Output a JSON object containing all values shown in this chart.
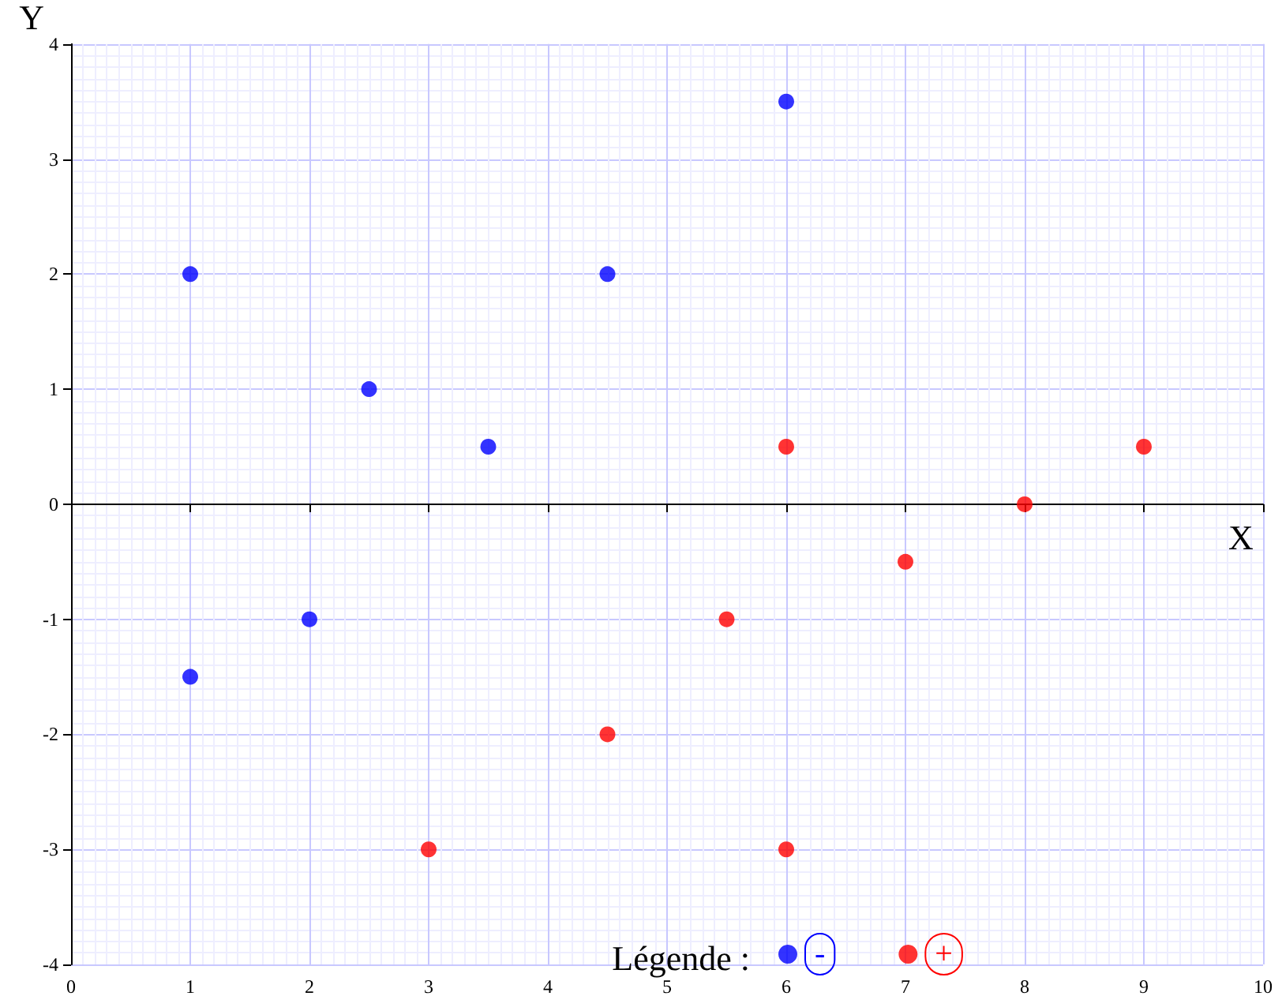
{
  "chart_data": {
    "type": "scatter",
    "xlabel": "X",
    "ylabel": "Y",
    "legend_title": "Légende :",
    "legend": "bottom",
    "grid": true,
    "marker": "circle",
    "xlim": [
      0,
      10
    ],
    "xticks": [
      0,
      1,
      2,
      3,
      4,
      5,
      6,
      7,
      8,
      9,
      10
    ],
    "ylim": [
      -4,
      4
    ],
    "yticks": [
      -4,
      -3,
      -2,
      -1,
      0,
      1,
      2,
      3,
      4
    ],
    "series": [
      {
        "name": "-",
        "color": "#0000ff",
        "x": [
          1,
          2.5,
          3.5,
          4.5,
          6,
          1,
          2
        ],
        "values": [
          2,
          1,
          0.5,
          2,
          3.5,
          -1.5,
          -1
        ]
      },
      {
        "name": "+",
        "color": "#ff0000",
        "x": [
          3,
          4.5,
          5.5,
          6,
          6,
          7,
          8,
          9
        ],
        "values": [
          -3,
          -2,
          -1,
          -3,
          0.5,
          -0.5,
          0,
          0.5
        ]
      }
    ]
  }
}
